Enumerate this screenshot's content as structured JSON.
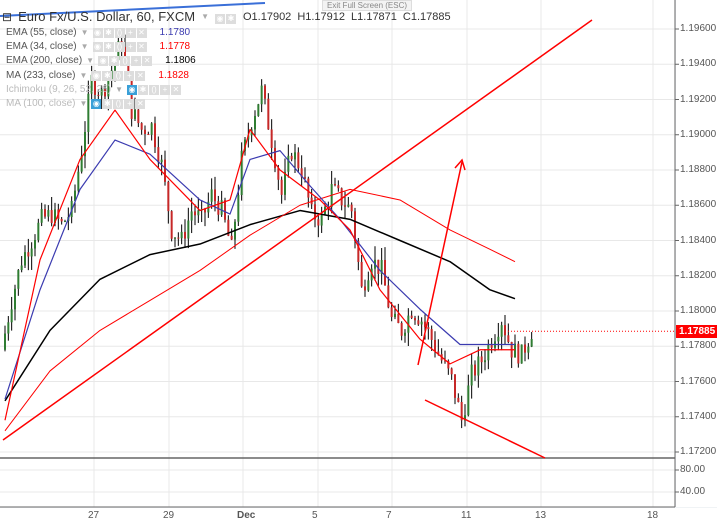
{
  "header": {
    "title": "Euro Fx/U.S. Dollar, 60, FXCM",
    "open": "O1.17902",
    "high": "H1.17912",
    "low": "L1.17871",
    "close": "C1.17885"
  },
  "tooltip": "Exit Full Screen (ESC)",
  "indicators": [
    {
      "label": "EMA (55, close)",
      "value": "1.1780",
      "color": "#3b3bb0"
    },
    {
      "label": "EMA (34, close)",
      "value": "1.1778",
      "color": "#ff0000"
    },
    {
      "label": "EMA (200, close)",
      "value": "1.1806",
      "color": "#000000"
    },
    {
      "label": "MA (233, close)",
      "value": "1.1828",
      "color": "#ff0000"
    },
    {
      "label": "Ichimoku (9, 26, 52, 26)",
      "value": "",
      "color": "#999999"
    },
    {
      "label": "MA (100, close)",
      "value": "",
      "color": "#999999"
    }
  ],
  "price_axis": {
    "ticks": [
      "1.19600",
      "1.19400",
      "1.19200",
      "1.19000",
      "1.18800",
      "1.18600",
      "1.18400",
      "1.18200",
      "1.18000",
      "1.17800",
      "1.17600",
      "1.17400",
      "1.17200"
    ],
    "last_price": "1.17885",
    "last_color": "#ff0000"
  },
  "sub_axis": {
    "ticks": [
      "80.00",
      "40.00"
    ]
  },
  "time_axis": {
    "ticks": [
      "27",
      "29",
      "Dec",
      "5",
      "7",
      "11",
      "13",
      "18"
    ]
  },
  "chart_data": {
    "type": "candlestick",
    "ylim": [
      1.1718,
      1.197
    ],
    "close_path": [
      1.1778,
      1.1806,
      1.1829,
      1.184,
      1.1852,
      1.1855,
      1.1849,
      1.1857,
      1.1891,
      1.1931,
      1.1923,
      1.1937,
      1.1954,
      1.1914,
      1.1903,
      1.1905,
      1.1883,
      1.1846,
      1.184,
      1.1857,
      1.1852,
      1.1866,
      1.1857,
      1.1835,
      1.1886,
      1.1908,
      1.1925,
      1.1897,
      1.1866,
      1.1891,
      1.188,
      1.1855,
      1.1852,
      1.1869,
      1.1863,
      1.1857,
      1.1812,
      1.1829,
      1.1823,
      1.1795,
      1.1789,
      1.1801,
      1.1795,
      1.1784,
      1.1772,
      1.1761,
      1.1738,
      1.1764,
      1.1772,
      1.1784,
      1.1795,
      1.1778,
      1.1775,
      1.1789
    ],
    "ema55": [
      [
        0,
        1.175
      ],
      [
        3.5,
        1.1812
      ],
      [
        7.5,
        1.1869
      ],
      [
        11,
        1.1897
      ],
      [
        14.5,
        1.1889
      ],
      [
        19.5,
        1.1863
      ],
      [
        22.5,
        1.1855
      ],
      [
        24.5,
        1.1886
      ],
      [
        27.5,
        1.1891
      ],
      [
        30.5,
        1.1871
      ],
      [
        33.5,
        1.1852
      ],
      [
        37.5,
        1.1823
      ],
      [
        41.5,
        1.1801
      ],
      [
        45.5,
        1.1781
      ],
      [
        48.5,
        1.1781
      ],
      [
        51,
        1.1781
      ]
    ],
    "ema34": [
      [
        0,
        1.1738
      ],
      [
        3.5,
        1.1829
      ],
      [
        7.5,
        1.1886
      ],
      [
        11,
        1.1914
      ],
      [
        14.5,
        1.1886
      ],
      [
        19.5,
        1.1857
      ],
      [
        22.5,
        1.1863
      ],
      [
        24.5,
        1.1903
      ],
      [
        27.5,
        1.188
      ],
      [
        31.5,
        1.1863
      ],
      [
        34.5,
        1.1846
      ],
      [
        37.5,
        1.1812
      ],
      [
        41.5,
        1.1784
      ],
      [
        44.5,
        1.177
      ],
      [
        47.5,
        1.1778
      ],
      [
        51,
        1.1778
      ]
    ],
    "ema200": [
      [
        0,
        1.1749
      ],
      [
        4.5,
        1.1789
      ],
      [
        9.5,
        1.1818
      ],
      [
        14.5,
        1.1832
      ],
      [
        19.5,
        1.1838
      ],
      [
        24.5,
        1.1849
      ],
      [
        29.5,
        1.1857
      ],
      [
        34.5,
        1.1852
      ],
      [
        39.5,
        1.184
      ],
      [
        44.5,
        1.1828
      ],
      [
        48.5,
        1.1812
      ],
      [
        51,
        1.1807
      ]
    ],
    "ma233": [
      [
        0,
        1.1732
      ],
      [
        4.5,
        1.1766
      ],
      [
        9.5,
        1.1789
      ],
      [
        14.5,
        1.1806
      ],
      [
        19.5,
        1.1823
      ],
      [
        24.5,
        1.1843
      ],
      [
        29.5,
        1.186
      ],
      [
        34.5,
        1.1869
      ],
      [
        39.5,
        1.1863
      ],
      [
        44.5,
        1.1846
      ],
      [
        48.5,
        1.1835
      ],
      [
        51,
        1.1828
      ]
    ]
  }
}
